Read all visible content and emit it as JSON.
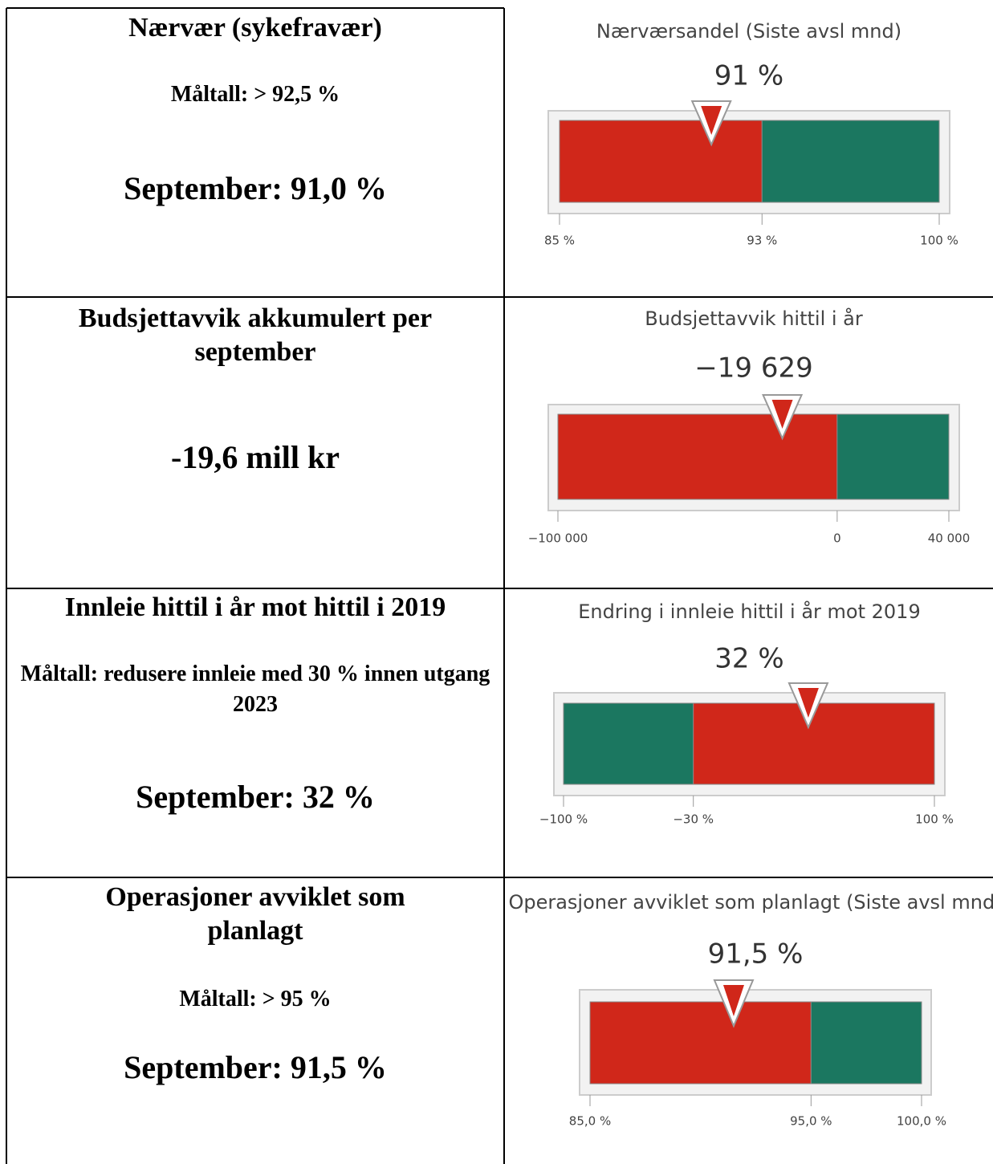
{
  "rows": [
    {
      "heading": "Nærvær (sykefravær)",
      "target": "Måltall: > 92,5 %",
      "status": "September: 91,0 %",
      "gauge": {
        "type": "gauge",
        "title": "Nærværsandel (Siste avsl mnd)",
        "value": 91,
        "value_label": "91 %",
        "xlim": [
          85,
          100
        ],
        "xticks": [
          {
            "value": 85,
            "label": "85 %"
          },
          {
            "value": 93,
            "label": "93 %"
          },
          {
            "value": 100,
            "label": "100 %"
          }
        ],
        "bands": [
          {
            "from": 85,
            "to": 93,
            "color": "#d0271a"
          },
          {
            "from": 93,
            "to": 100,
            "color": "#1b7760"
          }
        ]
      }
    },
    {
      "heading": "Budsjettavvik akkumulert per september",
      "status": "-19,6 mill kr",
      "gauge": {
        "type": "gauge",
        "title": "Budsjettavvik hittil i år",
        "value": -19629,
        "value_label": "−19 629",
        "xlim": [
          -100000,
          40000
        ],
        "xticks": [
          {
            "value": -100000,
            "label": "−100 000"
          },
          0,
          {
            "value": 40000,
            "label": "40 000"
          }
        ],
        "bands": [
          {
            "from": -100000,
            "to": 0,
            "color": "#d0271a"
          },
          {
            "from": 0,
            "to": 40000,
            "color": "#1b7760"
          }
        ]
      }
    },
    {
      "heading": "Innleie hittil i år mot hittil i 2019",
      "target": "Måltall: redusere innleie med 30 % innen utgang 2023",
      "status": "September: 32 %",
      "gauge": {
        "type": "gauge",
        "title": "Endring i innleie hittil i år mot 2019",
        "value": 32,
        "value_label": "32 %",
        "xlim": [
          -100,
          100
        ],
        "xticks": [
          {
            "value": -100,
            "label": "−100 %"
          },
          {
            "value": -30,
            "label": "−30 %"
          },
          {
            "value": 100,
            "label": "100 %"
          }
        ],
        "bands": [
          {
            "from": -100,
            "to": -30,
            "color": "#1b7760"
          },
          {
            "from": -30,
            "to": 100,
            "color": "#d0271a"
          }
        ]
      }
    },
    {
      "heading": "Operasjoner avviklet som planlagt",
      "target": "Måltall: > 95 %",
      "status": "September: 91,5 %",
      "gauge": {
        "type": "gauge",
        "title": "Operasjoner avviklet som planlagt (Siste avsl mnd)",
        "value": 91.5,
        "value_label": "91,5 %",
        "xlim": [
          85,
          100
        ],
        "xticks": [
          {
            "value": 85,
            "label": "85,0 %"
          },
          {
            "value": 95,
            "label": "95,0 %"
          },
          {
            "value": 100,
            "label": "100,0 %"
          }
        ],
        "bands": [
          {
            "from": 85,
            "to": 95,
            "color": "#d0271a"
          },
          {
            "from": 95,
            "to": 100,
            "color": "#1b7760"
          }
        ]
      }
    }
  ]
}
